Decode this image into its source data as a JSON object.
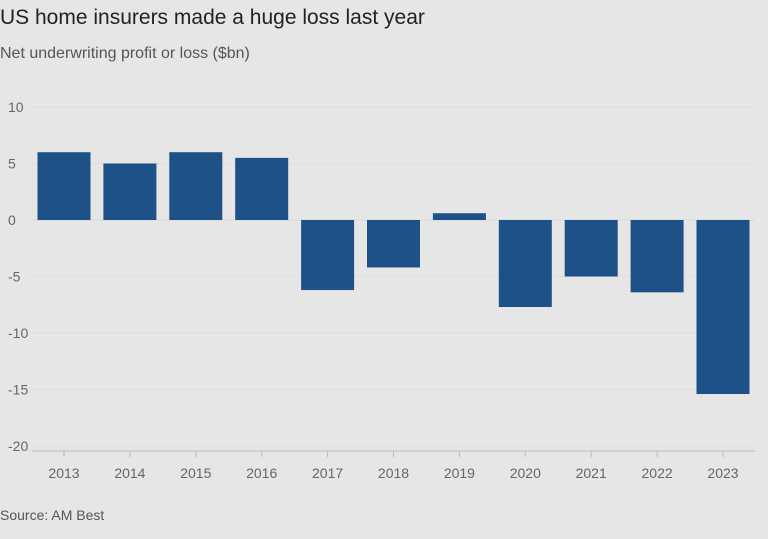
{
  "chart_data": {
    "type": "bar",
    "title": "US home insurers made a huge loss last year",
    "subtitle": "Net underwriting profit or loss ($bn)",
    "source": "Source: AM Best",
    "categories": [
      "2013",
      "2014",
      "2015",
      "2016",
      "2017",
      "2018",
      "2019",
      "2020",
      "2021",
      "2022",
      "2023"
    ],
    "values": [
      6.0,
      5.0,
      6.0,
      5.5,
      -6.2,
      -4.2,
      0.6,
      -7.7,
      -5.0,
      -6.4,
      -15.4
    ],
    "ylim": [
      -20,
      10
    ],
    "yticks": [
      10,
      5,
      0,
      -5,
      -10,
      -15,
      -20
    ],
    "grid": true,
    "color": "#1f5189"
  }
}
